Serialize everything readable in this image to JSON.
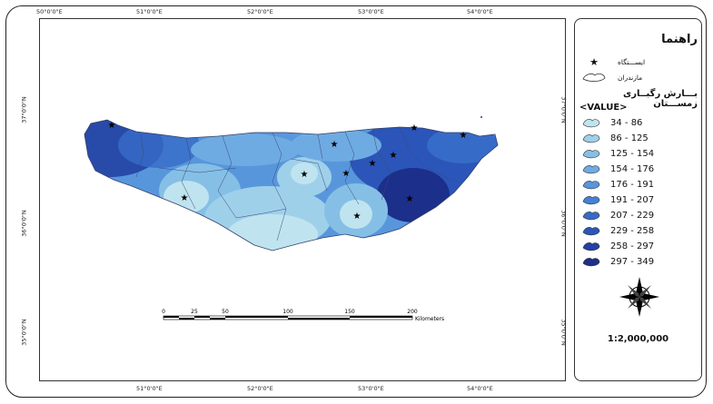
{
  "map": {
    "top_labels": [
      "50°0'0\"E",
      "51°0'0\"E",
      "52°0'0\"E",
      "53°0'0\"E",
      "54°0'0\"E"
    ],
    "bottom_labels": [
      "51°0'0\"E",
      "52°0'0\"E",
      "53°0'0\"E",
      "54°0'0\"E"
    ],
    "left_labels": [
      "37°0'0\"N",
      "36°0'0\"N",
      "35°0'0\"N"
    ],
    "right_labels": [
      "37°0'0\"N",
      "36°0'0\"N",
      "35°0'0\"N"
    ],
    "scale_bar": {
      "ticks": [
        "0",
        "25",
        "50",
        "100",
        "150",
        "200"
      ],
      "unit": "Kilometers"
    }
  },
  "legend": {
    "title": "راهنما",
    "station_label": "ایســـتگاه",
    "province_label": "مازندران",
    "rain_title": "بـــارش رگبــاری زمســـتان",
    "value_label": "<VALUE>",
    "classes": [
      {
        "range": "34 - 86",
        "color": "#bfe4ef"
      },
      {
        "range": "86 - 125",
        "color": "#9fd0ea"
      },
      {
        "range": "125 - 154",
        "color": "#86bfe6"
      },
      {
        "range": "154 - 176",
        "color": "#6eabe2"
      },
      {
        "range": "176 - 191",
        "color": "#5896dc"
      },
      {
        "range": "191 - 207",
        "color": "#4580d4"
      },
      {
        "range": "207 - 229",
        "color": "#376bc8"
      },
      {
        "range": "229 - 258",
        "color": "#2b55b8"
      },
      {
        "range": "258 - 297",
        "color": "#2441a3"
      },
      {
        "range": "297 - 349",
        "color": "#1c2f8a"
      }
    ],
    "scale_ratio": "1:2,000,000"
  }
}
